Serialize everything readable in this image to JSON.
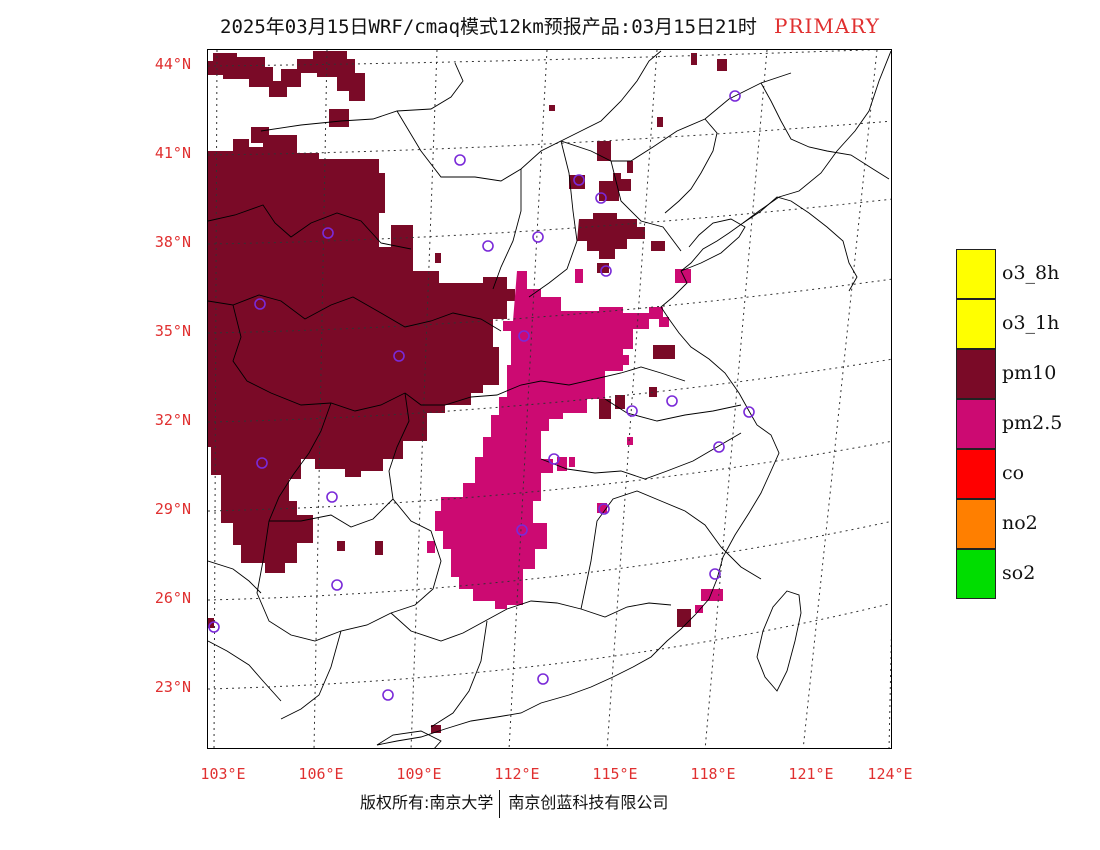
{
  "title": {
    "main": "2025年03月15日WRF/cmaq模式12km预报产品:03月15日21时",
    "pollutant": "PRIMARY"
  },
  "map": {
    "lat_labels": [
      "44°N",
      "41°N",
      "38°N",
      "35°N",
      "32°N",
      "29°N",
      "26°N",
      "23°N"
    ],
    "lon_labels": [
      "103°E",
      "106°E",
      "109°E",
      "112°E",
      "115°E",
      "118°E",
      "121°E",
      "124°E"
    ],
    "colors": {
      "pm10": "#7a0a27",
      "pm25": "#cc0a72",
      "station": "#7a2ad8",
      "boundary": "#000000",
      "grid": "#444444"
    }
  },
  "legend": [
    {
      "label": "o3_8h",
      "color": "#ffff00"
    },
    {
      "label": "o3_1h",
      "color": "#ffff00"
    },
    {
      "label": "pm10",
      "color": "#7a0a27"
    },
    {
      "label": "pm2.5",
      "color": "#cc0a72"
    },
    {
      "label": "co",
      "color": "#ff0000"
    },
    {
      "label": "no2",
      "color": "#ff7f00"
    },
    {
      "label": "so2",
      "color": "#00dd00"
    }
  ],
  "footer": {
    "left": "版权所有:南京大学",
    "right": "南京创蓝科技有限公司"
  }
}
